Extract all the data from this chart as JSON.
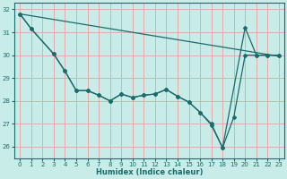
{
  "xlabel": "Humidex (Indice chaleur)",
  "background_color": "#c8ede9",
  "grid_color": "#e8a8a8",
  "line_color": "#1a6b6b",
  "xlim": [
    -0.5,
    23.5
  ],
  "ylim": [
    25.5,
    32.3
  ],
  "xticks": [
    0,
    1,
    2,
    3,
    4,
    5,
    6,
    7,
    8,
    9,
    10,
    11,
    12,
    13,
    14,
    15,
    16,
    17,
    18,
    19,
    20,
    21,
    22,
    23
  ],
  "yticks": [
    26,
    27,
    28,
    29,
    30,
    31,
    32
  ],
  "line1_x": [
    0,
    1,
    3,
    4,
    5,
    6,
    7,
    8,
    9,
    10,
    11,
    12,
    13,
    14,
    15,
    16,
    17,
    18,
    20,
    21,
    22,
    23
  ],
  "line1_y": [
    31.8,
    31.15,
    30.05,
    29.3,
    28.45,
    28.45,
    28.25,
    28.0,
    28.3,
    28.15,
    28.25,
    28.3,
    28.5,
    28.2,
    27.95,
    27.5,
    27.0,
    25.95,
    31.2,
    30.0,
    30.0,
    30.0
  ],
  "line2_x": [
    0,
    1,
    3,
    4,
    5,
    6,
    7,
    8,
    9,
    10,
    11,
    12,
    13,
    14,
    15,
    16,
    17,
    18,
    19,
    20,
    21,
    22,
    23
  ],
  "line2_y": [
    31.8,
    31.15,
    30.05,
    29.3,
    28.45,
    28.45,
    28.25,
    28.0,
    28.3,
    28.15,
    28.25,
    28.3,
    28.5,
    28.2,
    27.95,
    27.5,
    26.95,
    25.95,
    27.3,
    30.0,
    30.0,
    30.0,
    30.0
  ],
  "line3_x": [
    0,
    23
  ],
  "line3_y": [
    31.8,
    29.95
  ]
}
